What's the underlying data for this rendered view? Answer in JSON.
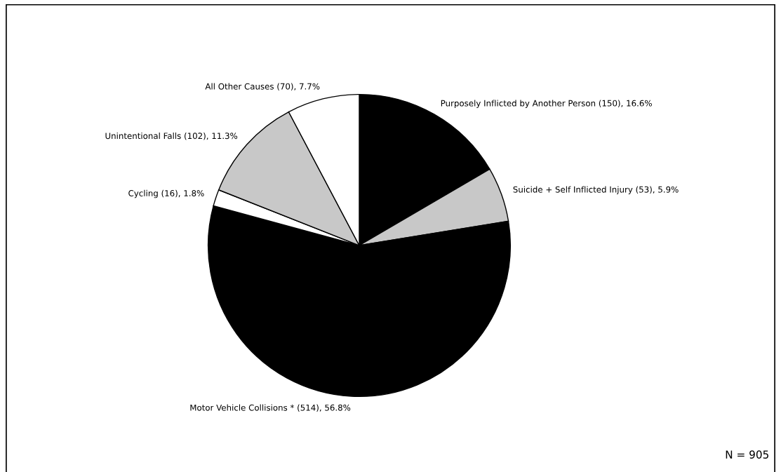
{
  "chart_data": {
    "type": "pie",
    "categories": [
      "Purposely Inflicted by Another Person (150), 16.6%",
      "Suicide + Self Inflicted Injury (53), 5.9%",
      "Motor Vehicle Collisions * (514), 56.8%",
      "Cycling (16), 1.8%",
      "Unintentional Falls (102), 11.3%",
      "All Other Causes (70), 7.7%"
    ],
    "values": [
      150,
      53,
      514,
      16,
      102,
      70
    ],
    "colors": [
      "#000000",
      "#c8c8c8",
      "#000000",
      "#ffffff",
      "#c8c8c8",
      "#ffffff"
    ],
    "annotations": [
      "N = 905"
    ]
  }
}
